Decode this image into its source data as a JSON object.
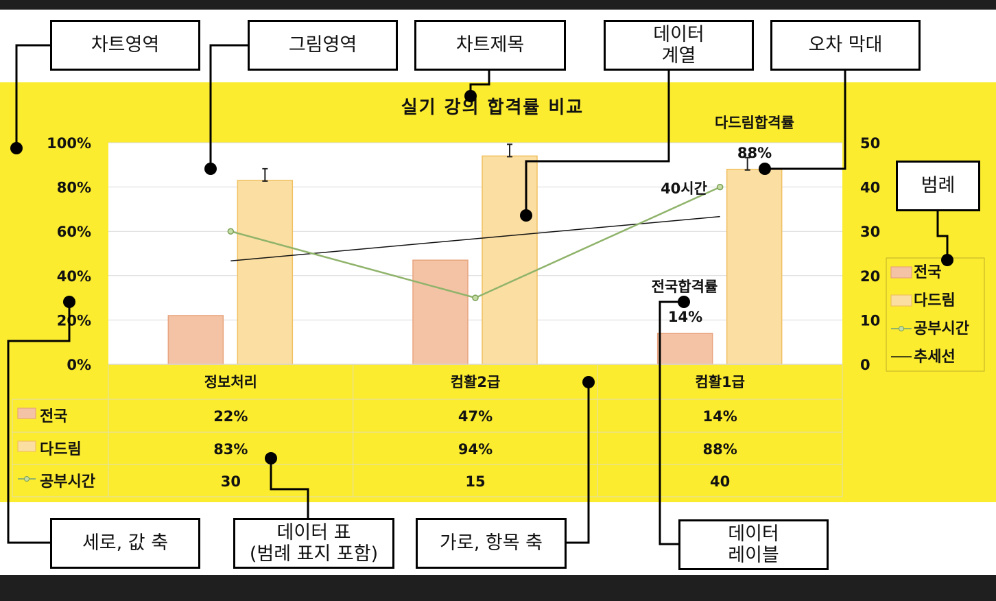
{
  "callouts": {
    "chart_area": "차트영역",
    "plot_area": "그림영역",
    "chart_title": "차트제목",
    "data_series": "데이터\n계열",
    "error_bar": "오차 막대",
    "legend": "범례",
    "value_axis": "세로, 값 축",
    "data_table": "데이터 표\n(범례 표지 포함)",
    "category_axis": "가로, 항목 축",
    "data_label": "데이터\n레이블"
  },
  "chart_data": {
    "type": "bar",
    "title": "실기 강의 합격률 비교",
    "categories": [
      "정보처리",
      "컴활2급",
      "컴활1급"
    ],
    "series": [
      {
        "name": "전국",
        "type": "bar",
        "axis": "left",
        "values": [
          22,
          47,
          14
        ],
        "display": [
          "22%",
          "47%",
          "14%"
        ],
        "color": "#f4c3a6",
        "stroke": "#e8a47e"
      },
      {
        "name": "다드림",
        "type": "bar",
        "axis": "left",
        "values": [
          83,
          94,
          88
        ],
        "display": [
          "83%",
          "94%",
          "88%"
        ],
        "color": "#fbdea2",
        "stroke": "#f0c060",
        "error_bars": true
      },
      {
        "name": "공부시간",
        "type": "line",
        "axis": "right",
        "values": [
          30,
          15,
          40
        ],
        "display": [
          "30",
          "15",
          "40"
        ],
        "color": "#8fb36a"
      }
    ],
    "trendline": {
      "name": "추세선",
      "color": "#111111"
    },
    "left_axis": {
      "min": 0,
      "max": 100,
      "ticks": [
        "0%",
        "20%",
        "40%",
        "60%",
        "80%",
        "100%"
      ]
    },
    "right_axis": {
      "min": 0,
      "max": 50,
      "ticks": [
        "0",
        "10",
        "20",
        "30",
        "40",
        "50"
      ]
    },
    "data_labels": [
      {
        "text": "다드림합격률"
      },
      {
        "text": "88%"
      },
      {
        "text": "40시간"
      },
      {
        "text": "전국합격률"
      },
      {
        "text": "14%"
      }
    ],
    "legend_position": "right",
    "grid": true,
    "data_table": true
  }
}
